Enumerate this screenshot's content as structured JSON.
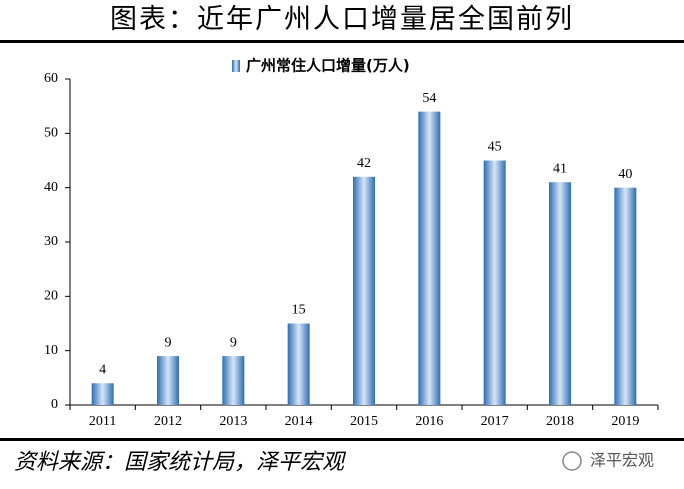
{
  "header": {
    "title": "图表：近年广州人口增量居全国前列"
  },
  "chart_data": {
    "type": "bar",
    "categories": [
      "2011",
      "2012",
      "2013",
      "2014",
      "2015",
      "2016",
      "2017",
      "2018",
      "2019"
    ],
    "series": [
      {
        "name": "广州常住人口增量(万人)",
        "color": "#2e6db4",
        "values": [
          4,
          9,
          9,
          15,
          42,
          54,
          45,
          41,
          40
        ]
      }
    ],
    "ylim": [
      0,
      60
    ],
    "yticks": [
      0,
      10,
      20,
      30,
      40,
      50,
      60
    ],
    "grid": false,
    "legend": "top"
  },
  "footer": {
    "source": "资料来源：国家统计局，泽平宏观",
    "watermark": "泽平宏观"
  }
}
